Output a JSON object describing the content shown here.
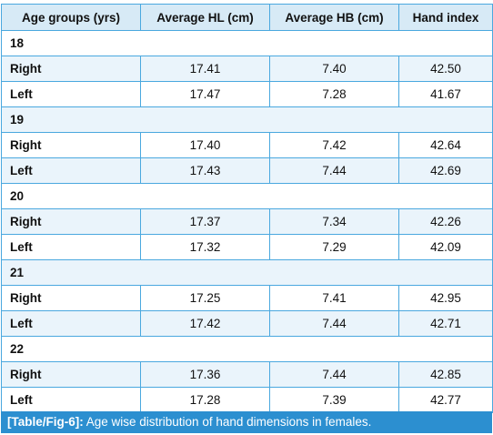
{
  "table": {
    "headers": [
      "Age groups (yrs)",
      "Average HL (cm)",
      "Average HB (cm)",
      "Hand index"
    ],
    "groups": [
      {
        "age": "18",
        "rows": [
          {
            "side": "Right",
            "hl": "17.41",
            "hb": "7.40",
            "hi": "42.50"
          },
          {
            "side": "Left",
            "hl": "17.47",
            "hb": "7.28",
            "hi": "41.67"
          }
        ]
      },
      {
        "age": "19",
        "rows": [
          {
            "side": "Right",
            "hl": "17.40",
            "hb": "7.42",
            "hi": "42.64"
          },
          {
            "side": "Left",
            "hl": "17.43",
            "hb": "7.44",
            "hi": "42.69"
          }
        ]
      },
      {
        "age": "20",
        "rows": [
          {
            "side": "Right",
            "hl": "17.37",
            "hb": "7.34",
            "hi": "42.26"
          },
          {
            "side": "Left",
            "hl": "17.32",
            "hb": "7.29",
            "hi": "42.09"
          }
        ]
      },
      {
        "age": "21",
        "rows": [
          {
            "side": "Right",
            "hl": "17.25",
            "hb": "7.41",
            "hi": "42.95"
          },
          {
            "side": "Left",
            "hl": "17.42",
            "hb": "7.44",
            "hi": "42.71"
          }
        ]
      },
      {
        "age": "22",
        "rows": [
          {
            "side": "Right",
            "hl": "17.36",
            "hb": "7.44",
            "hi": "42.85"
          },
          {
            "side": "Left",
            "hl": "17.28",
            "hb": "7.39",
            "hi": "42.77"
          }
        ]
      }
    ]
  },
  "caption": {
    "label": "[Table/Fig-6]:",
    "text": " Age wise distribution of hand dimensions in females."
  },
  "colors": {
    "border": "#4aa8df",
    "header_bg": "#d7eaf6",
    "shaded_row_bg": "#eaf4fb",
    "caption_bg": "#2c8fd0"
  }
}
